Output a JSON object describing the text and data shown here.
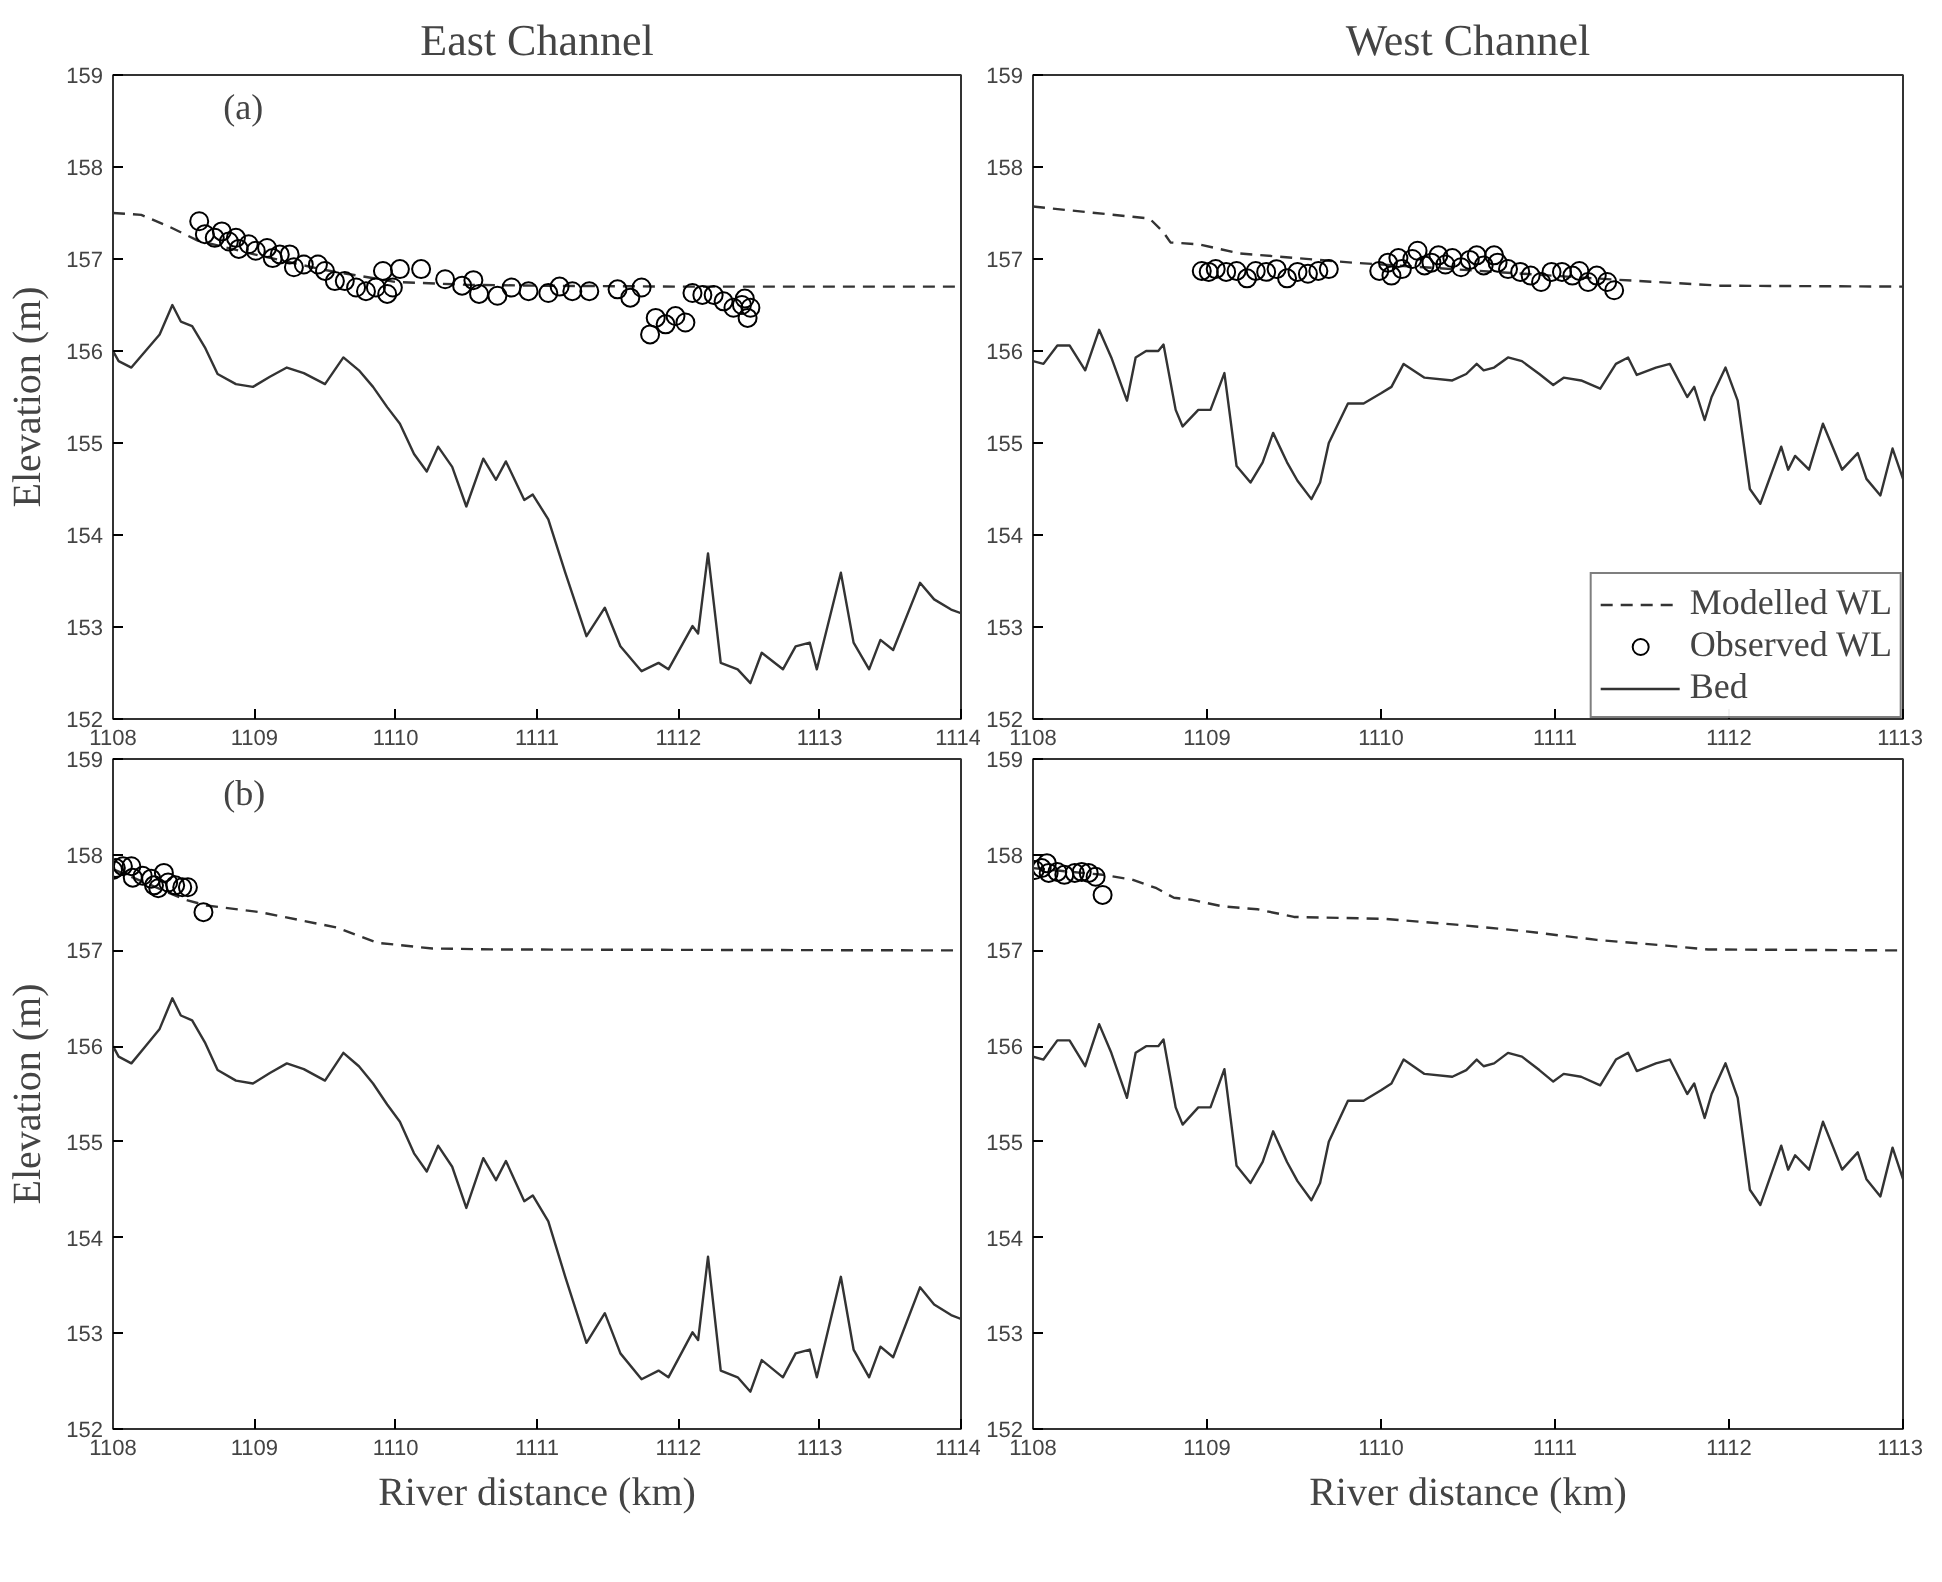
{
  "chart_data": [
    {
      "type": "line",
      "title": "East Channel",
      "ylabel": "Elevation (m)",
      "annotations": [
        "(a)"
      ],
      "xlim": [
        1108,
        1114
      ],
      "ylim": [
        152,
        159
      ],
      "xticks": [
        1108,
        1109,
        1110,
        1111,
        1112,
        1113,
        1114
      ],
      "yticks": [
        152,
        153,
        154,
        155,
        156,
        157,
        158,
        159
      ],
      "series": [
        {
          "line_style": "dashed",
          "color": "#333333",
          "x": [
            1108,
            1108.2,
            1108.4,
            1108.6,
            1109,
            1109.5,
            1110,
            1110.5,
            1111,
            1112,
            1114
          ],
          "values": [
            157.5,
            157.48,
            157.35,
            157.2,
            157.05,
            156.88,
            156.75,
            156.72,
            156.71,
            156.7,
            156.7
          ]
        },
        {
          "type": "scatter",
          "marker": "circle",
          "color": "#000000",
          "x": [
            1108.61,
            1108.65,
            1108.72,
            1108.77,
            1108.82,
            1108.87,
            1108.89,
            1108.96,
            1109.01,
            1109.09,
            1109.13,
            1109.18,
            1109.25,
            1109.28,
            1109.35,
            1109.45,
            1109.5,
            1109.57,
            1109.64,
            1109.72,
            1109.79,
            1109.86,
            1109.91,
            1109.94,
            1109.98,
            1110.03,
            1110.18,
            1110.35,
            1110.47,
            1110.55,
            1110.59,
            1110.72,
            1110.82,
            1110.94,
            1111.08,
            1111.16,
            1111.25,
            1111.37,
            1111.57,
            1111.66,
            1111.74,
            1111.8,
            1111.84,
            1111.91,
            1111.98,
            1112.05,
            1112.1,
            1112.17,
            1112.25,
            1112.32,
            1112.39,
            1112.45,
            1112.47,
            1112.49,
            1112.51
          ],
          "values": [
            157.41,
            157.27,
            157.23,
            157.3,
            157.19,
            157.23,
            157.11,
            157.16,
            157.09,
            157.12,
            157.01,
            157.05,
            157.05,
            156.91,
            156.94,
            156.94,
            156.87,
            156.76,
            156.76,
            156.69,
            156.65,
            156.69,
            156.87,
            156.62,
            156.69,
            156.89,
            156.89,
            156.78,
            156.71,
            156.77,
            156.62,
            156.6,
            156.69,
            156.65,
            156.63,
            156.7,
            156.65,
            156.65,
            156.67,
            156.58,
            156.69,
            156.18,
            156.36,
            156.29,
            156.38,
            156.31,
            156.63,
            156.61,
            156.61,
            156.54,
            156.47,
            156.5,
            156.57,
            156.36,
            156.47
          ]
        },
        {
          "line_style": "solid",
          "color": "#333333",
          "x": [
            1108,
            1108.04,
            1108.13,
            1108.23,
            1108.33,
            1108.42,
            1108.48,
            1108.56,
            1108.65,
            1108.74,
            1108.87,
            1108.99,
            1109.11,
            1109.23,
            1109.35,
            1109.5,
            1109.63,
            1109.74,
            1109.84,
            1109.94,
            1110.03,
            1110.13,
            1110.22,
            1110.3,
            1110.4,
            1110.5,
            1110.62,
            1110.71,
            1110.78,
            1110.91,
            1110.97,
            1111.08,
            1111.2,
            1111.35,
            1111.48,
            1111.59,
            1111.74,
            1111.86,
            1111.93,
            1112.1,
            1112.14,
            1112.21,
            1112.3,
            1112.42,
            1112.51,
            1112.59,
            1112.74,
            1112.83,
            1112.93,
            1112.98,
            1113.15,
            1113.24,
            1113.35,
            1113.43,
            1113.52,
            1113.71,
            1113.81,
            1113.93,
            1114
          ],
          "values": [
            156.0,
            155.89,
            155.82,
            156.0,
            156.18,
            156.5,
            156.32,
            156.27,
            156.04,
            155.75,
            155.64,
            155.61,
            155.72,
            155.82,
            155.76,
            155.64,
            155.93,
            155.79,
            155.61,
            155.39,
            155.21,
            154.88,
            154.69,
            154.96,
            154.74,
            154.31,
            154.83,
            154.6,
            154.8,
            154.38,
            154.44,
            154.17,
            153.59,
            152.9,
            153.21,
            152.79,
            152.52,
            152.61,
            152.54,
            153.01,
            152.93,
            153.8,
            152.61,
            152.54,
            152.39,
            152.72,
            152.54,
            152.79,
            152.83,
            152.54,
            153.59,
            152.83,
            152.54,
            152.86,
            152.75,
            153.48,
            153.3,
            153.19,
            153.15
          ]
        }
      ]
    },
    {
      "type": "line",
      "title": "West Channel",
      "legend": "bottom right",
      "xlim": [
        1108,
        1113
      ],
      "ylim": [
        152,
        159
      ],
      "xticks": [
        1108,
        1109,
        1110,
        1111,
        1112,
        1113
      ],
      "yticks": [
        152,
        153,
        154,
        155,
        156,
        157,
        158,
        159
      ],
      "series": [
        {
          "name": "Modelled WL",
          "line_style": "dashed",
          "color": "#333333",
          "x": [
            1108,
            1108.67,
            1108.75,
            1108.79,
            1108.95,
            1109.19,
            1109.84,
            1111.22,
            1111.95,
            1113
          ],
          "values": [
            157.57,
            157.44,
            157.29,
            157.18,
            157.16,
            157.06,
            156.96,
            156.79,
            156.71,
            156.7
          ]
        },
        {
          "type": "scatter",
          "name": "Observed WL",
          "marker": "circle",
          "color": "#000000",
          "x": [
            1108.97,
            1109.01,
            1109.05,
            1109.11,
            1109.17,
            1109.23,
            1109.28,
            1109.34,
            1109.4,
            1109.46,
            1109.52,
            1109.58,
            1109.64,
            1109.7,
            1109.99,
            1110.04,
            1110.06,
            1110.1,
            1110.12,
            1110.18,
            1110.21,
            1110.25,
            1110.29,
            1110.33,
            1110.37,
            1110.41,
            1110.46,
            1110.51,
            1110.55,
            1110.59,
            1110.65,
            1110.67,
            1110.73,
            1110.8,
            1110.86,
            1110.92,
            1110.98,
            1111.04,
            1111.1,
            1111.14,
            1111.19,
            1111.24,
            1111.3,
            1111.34
          ],
          "values": [
            156.87,
            156.86,
            156.89,
            156.86,
            156.87,
            156.79,
            156.87,
            156.86,
            156.89,
            156.79,
            156.86,
            156.84,
            156.87,
            156.89,
            156.87,
            156.96,
            156.82,
            157.01,
            156.89,
            157.0,
            157.09,
            156.93,
            156.96,
            157.04,
            156.94,
            157.01,
            156.91,
            156.99,
            157.04,
            156.93,
            157.04,
            156.96,
            156.89,
            156.86,
            156.82,
            156.75,
            156.86,
            156.86,
            156.82,
            156.87,
            156.75,
            156.82,
            156.75,
            156.66
          ]
        },
        {
          "name": "Bed",
          "line_style": "solid",
          "color": "#333333",
          "x": [
            1108,
            1108.06,
            1108.14,
            1108.21,
            1108.3,
            1108.38,
            1108.45,
            1108.54,
            1108.59,
            1108.65,
            1108.72,
            1108.75,
            1108.82,
            1108.86,
            1108.95,
            1109.02,
            1109.1,
            1109.17,
            1109.25,
            1109.32,
            1109.38,
            1109.46,
            1109.52,
            1109.6,
            1109.65,
            1109.7,
            1109.81,
            1109.9,
            1110,
            1110.06,
            1110.13,
            1110.25,
            1110.41,
            1110.49,
            1110.55,
            1110.59,
            1110.65,
            1110.73,
            1110.81,
            1110.91,
            1110.99,
            1111.05,
            1111.15,
            1111.26,
            1111.35,
            1111.42,
            1111.47,
            1111.58,
            1111.66,
            1111.76,
            1111.8,
            1111.86,
            1111.9,
            1111.98,
            1112.05,
            1112.12,
            1112.18,
            1112.3,
            1112.34,
            1112.38,
            1112.46,
            1112.54,
            1112.65,
            1112.74,
            1112.79,
            1112.87,
            1112.94,
            1113
          ],
          "values": [
            155.89,
            155.86,
            156.06,
            156.06,
            155.79,
            156.23,
            155.93,
            155.46,
            155.93,
            156.0,
            156.0,
            156.07,
            155.36,
            155.18,
            155.36,
            155.36,
            155.76,
            154.75,
            154.57,
            154.79,
            155.11,
            154.79,
            154.59,
            154.39,
            154.57,
            155.0,
            155.43,
            155.43,
            155.54,
            155.61,
            155.86,
            155.71,
            155.68,
            155.75,
            155.86,
            155.79,
            155.82,
            155.93,
            155.89,
            155.75,
            155.63,
            155.71,
            155.68,
            155.59,
            155.86,
            155.93,
            155.74,
            155.82,
            155.86,
            155.5,
            155.61,
            155.25,
            155.5,
            155.82,
            155.46,
            154.5,
            154.34,
            154.96,
            154.71,
            154.86,
            154.71,
            155.21,
            154.71,
            154.89,
            154.61,
            154.43,
            154.94,
            154.61
          ]
        }
      ]
    },
    {
      "type": "line",
      "ylabel": "Elevation (m)",
      "xlabel": "River distance (km)",
      "annotations": [
        "(b)"
      ],
      "xlim": [
        1108,
        1114
      ],
      "ylim": [
        152,
        159
      ],
      "xticks": [
        1108,
        1109,
        1110,
        1111,
        1112,
        1113,
        1114
      ],
      "yticks": [
        152,
        153,
        154,
        155,
        156,
        157,
        158,
        159
      ],
      "series": [
        {
          "line_style": "dashed",
          "color": "#333333",
          "x": [
            1108,
            1108.51,
            1108.66,
            1109.04,
            1109.58,
            1109.87,
            1110.26,
            1110.75,
            1114
          ],
          "values": [
            157.85,
            157.53,
            157.47,
            157.4,
            157.24,
            157.08,
            157.02,
            157.01,
            157.0
          ]
        },
        {
          "type": "scatter",
          "marker": "circle",
          "color": "#000000",
          "x": [
            1108.0,
            1108.02,
            1108.07,
            1108.13,
            1108.14,
            1108.21,
            1108.27,
            1108.29,
            1108.32,
            1108.36,
            1108.39,
            1108.44,
            1108.49,
            1108.53,
            1108.64
          ],
          "values": [
            157.84,
            157.86,
            157.88,
            157.88,
            157.76,
            157.78,
            157.75,
            157.68,
            157.65,
            157.81,
            157.71,
            157.68,
            157.66,
            157.66,
            157.4
          ]
        },
        {
          "line_style": "solid",
          "color": "#333333",
          "x": [
            1108,
            1108.04,
            1108.13,
            1108.23,
            1108.33,
            1108.42,
            1108.48,
            1108.56,
            1108.65,
            1108.74,
            1108.87,
            1108.99,
            1109.11,
            1109.23,
            1109.35,
            1109.5,
            1109.63,
            1109.74,
            1109.84,
            1109.94,
            1110.03,
            1110.13,
            1110.22,
            1110.3,
            1110.4,
            1110.5,
            1110.62,
            1110.71,
            1110.78,
            1110.91,
            1110.97,
            1111.08,
            1111.2,
            1111.35,
            1111.48,
            1111.59,
            1111.74,
            1111.86,
            1111.93,
            1112.1,
            1112.14,
            1112.21,
            1112.3,
            1112.42,
            1112.51,
            1112.59,
            1112.74,
            1112.83,
            1112.93,
            1112.98,
            1113.15,
            1113.24,
            1113.35,
            1113.43,
            1113.52,
            1113.71,
            1113.81,
            1113.93,
            1114
          ],
          "values": [
            156.0,
            155.89,
            155.82,
            156.0,
            156.18,
            156.5,
            156.32,
            156.27,
            156.04,
            155.75,
            155.64,
            155.61,
            155.72,
            155.82,
            155.76,
            155.64,
            155.93,
            155.79,
            155.61,
            155.39,
            155.21,
            154.88,
            154.69,
            154.96,
            154.74,
            154.31,
            154.83,
            154.6,
            154.8,
            154.38,
            154.44,
            154.17,
            153.59,
            152.9,
            153.21,
            152.79,
            152.52,
            152.61,
            152.54,
            153.01,
            152.93,
            153.8,
            152.61,
            152.54,
            152.39,
            152.72,
            152.54,
            152.79,
            152.83,
            152.54,
            153.59,
            152.83,
            152.54,
            152.86,
            152.75,
            153.48,
            153.3,
            153.19,
            153.15
          ]
        }
      ]
    },
    {
      "type": "line",
      "xlabel": "River distance (km)",
      "xlim": [
        1108,
        1113
      ],
      "ylim": [
        152,
        159
      ],
      "xticks": [
        1108,
        1109,
        1110,
        1111,
        1112,
        1113
      ],
      "yticks": [
        152,
        153,
        154,
        155,
        156,
        157,
        158,
        159
      ],
      "series": [
        {
          "line_style": "dashed",
          "color": "#333333",
          "x": [
            1108,
            1108.4,
            1108.57,
            1108.71,
            1108.81,
            1108.91,
            1109.09,
            1109.29,
            1109.5,
            1110.02,
            1110.43,
            1110.83,
            1111.24,
            1111.64,
            1111.88,
            1113
          ],
          "values": [
            157.86,
            157.79,
            157.74,
            157.65,
            157.55,
            157.53,
            157.46,
            157.43,
            157.35,
            157.33,
            157.27,
            157.2,
            157.11,
            157.05,
            157.01,
            157.0
          ]
        },
        {
          "type": "scatter",
          "marker": "circle",
          "color": "#000000",
          "x": [
            1108.01,
            1108.05,
            1108.08,
            1108.09,
            1108.14,
            1108.18,
            1108.24,
            1108.28,
            1108.32,
            1108.36,
            1108.4
          ],
          "values": [
            157.84,
            157.86,
            157.91,
            157.81,
            157.82,
            157.79,
            157.81,
            157.82,
            157.81,
            157.77,
            157.58
          ]
        },
        {
          "line_style": "solid",
          "color": "#333333",
          "x": [
            1108,
            1108.06,
            1108.14,
            1108.21,
            1108.3,
            1108.38,
            1108.45,
            1108.54,
            1108.59,
            1108.65,
            1108.72,
            1108.75,
            1108.82,
            1108.86,
            1108.95,
            1109.02,
            1109.1,
            1109.17,
            1109.25,
            1109.32,
            1109.38,
            1109.46,
            1109.52,
            1109.6,
            1109.65,
            1109.7,
            1109.81,
            1109.9,
            1110,
            1110.06,
            1110.13,
            1110.25,
            1110.41,
            1110.49,
            1110.55,
            1110.59,
            1110.65,
            1110.73,
            1110.81,
            1110.91,
            1110.99,
            1111.05,
            1111.15,
            1111.26,
            1111.35,
            1111.42,
            1111.47,
            1111.58,
            1111.66,
            1111.76,
            1111.8,
            1111.86,
            1111.9,
            1111.98,
            1112.05,
            1112.12,
            1112.18,
            1112.3,
            1112.34,
            1112.38,
            1112.46,
            1112.54,
            1112.65,
            1112.74,
            1112.79,
            1112.87,
            1112.94,
            1113
          ],
          "values": [
            155.89,
            155.86,
            156.06,
            156.06,
            155.79,
            156.23,
            155.93,
            155.46,
            155.93,
            156.0,
            156.0,
            156.07,
            155.36,
            155.18,
            155.36,
            155.36,
            155.76,
            154.75,
            154.57,
            154.79,
            155.11,
            154.79,
            154.59,
            154.39,
            154.57,
            155.0,
            155.43,
            155.43,
            155.54,
            155.61,
            155.86,
            155.71,
            155.68,
            155.75,
            155.86,
            155.79,
            155.82,
            155.93,
            155.89,
            155.75,
            155.63,
            155.71,
            155.68,
            155.59,
            155.86,
            155.93,
            155.74,
            155.82,
            155.86,
            155.5,
            155.61,
            155.25,
            155.5,
            155.82,
            155.46,
            154.5,
            154.34,
            154.96,
            154.71,
            154.86,
            154.71,
            155.21,
            154.71,
            154.89,
            154.61,
            154.43,
            154.94,
            154.61
          ]
        }
      ]
    }
  ]
}
